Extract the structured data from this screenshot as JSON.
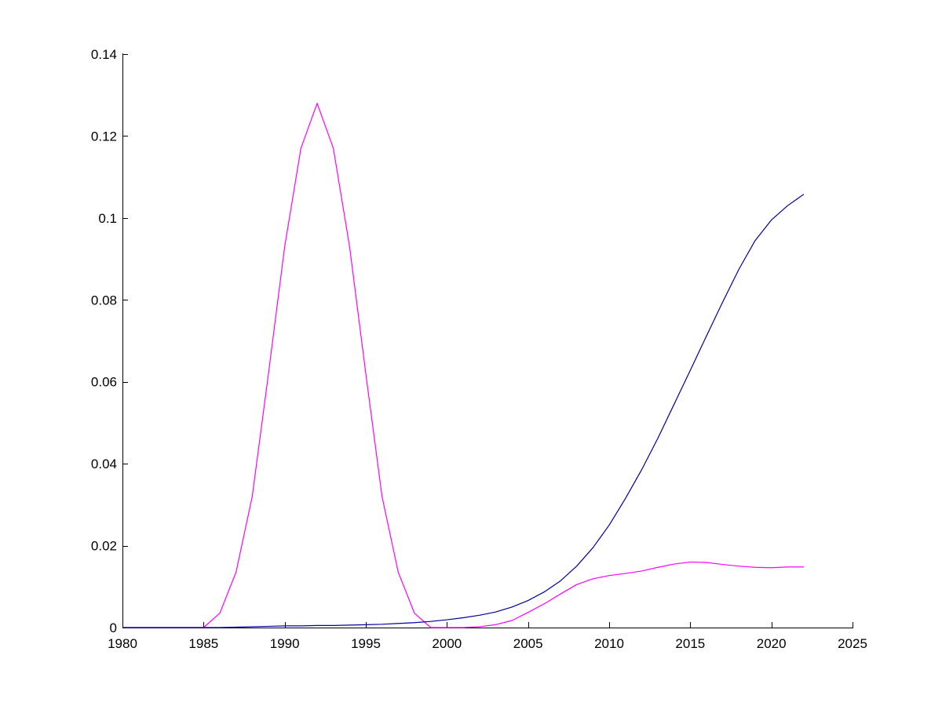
{
  "chart_data": {
    "type": "line",
    "title": "",
    "xlabel": "",
    "ylabel": "",
    "xlim": [
      1980,
      2025
    ],
    "ylim": [
      0,
      0.14
    ],
    "grid": false,
    "x_ticks": [
      1980,
      1985,
      1990,
      1995,
      2000,
      2005,
      2010,
      2015,
      2020,
      2025
    ],
    "x_tick_labels": [
      "1980",
      "1985",
      "1990",
      "1995",
      "2000",
      "2005",
      "2010",
      "2015",
      "2020",
      "2025"
    ],
    "y_ticks": [
      0,
      0.02,
      0.04,
      0.06,
      0.08,
      0.1,
      0.12,
      0.14
    ],
    "y_tick_labels": [
      "0",
      "0.02",
      "0.04",
      "0.06",
      "0.08",
      "0.1",
      "0.12",
      "0.14"
    ],
    "series": [
      {
        "color": "#ff00ff",
        "x": [
          1980,
          1981,
          1982,
          1983,
          1984,
          1985,
          1986,
          1987,
          1988,
          1989,
          1990,
          1991,
          1992,
          1993,
          1994,
          1995,
          1996,
          1997,
          1998,
          1999,
          2000,
          2001,
          2002,
          2003,
          2004,
          2005,
          2006,
          2007,
          2008,
          2009,
          2010,
          2011,
          2012,
          2013,
          2014,
          2015,
          2016,
          2017,
          2018,
          2019,
          2020,
          2021,
          2022
        ],
        "values": [
          0,
          0,
          0,
          0,
          0,
          0,
          0.0035,
          0.0135,
          0.032,
          0.062,
          0.093,
          0.117,
          0.128,
          0.117,
          0.093,
          0.062,
          0.032,
          0.0135,
          0.0035,
          0,
          0,
          0,
          0.0002,
          0.0007,
          0.0017,
          0.0037,
          0.0058,
          0.0082,
          0.0105,
          0.0119,
          0.0127,
          0.0132,
          0.0138,
          0.0147,
          0.0155,
          0.016,
          0.0159,
          0.0154,
          0.015,
          0.0147,
          0.0146,
          0.0148,
          0.0148
        ]
      },
      {
        "color": "#0000a0",
        "x": [
          1980,
          1981,
          1982,
          1983,
          1984,
          1985,
          1986,
          1987,
          1988,
          1989,
          1990,
          1991,
          1992,
          1993,
          1994,
          1995,
          1996,
          1997,
          1998,
          1999,
          2000,
          2001,
          2002,
          2003,
          2004,
          2005,
          2006,
          2007,
          2008,
          2009,
          2010,
          2011,
          2012,
          2013,
          2014,
          2015,
          2016,
          2017,
          2018,
          2019,
          2020,
          2021,
          2022
        ],
        "values": [
          0,
          0,
          0,
          0,
          0,
          0,
          0,
          0.0001,
          0.0002,
          0.0003,
          0.0004,
          0.0004,
          0.0005,
          0.0005,
          0.0006,
          0.0007,
          0.0008,
          0.001,
          0.0012,
          0.0015,
          0.0019,
          0.0024,
          0.003,
          0.0038,
          0.005,
          0.0066,
          0.0087,
          0.0114,
          0.015,
          0.0195,
          0.025,
          0.0315,
          0.0385,
          0.0462,
          0.0545,
          0.0628,
          0.0712,
          0.0795,
          0.0875,
          0.0945,
          0.0995,
          0.103,
          0.1058
        ]
      }
    ]
  }
}
